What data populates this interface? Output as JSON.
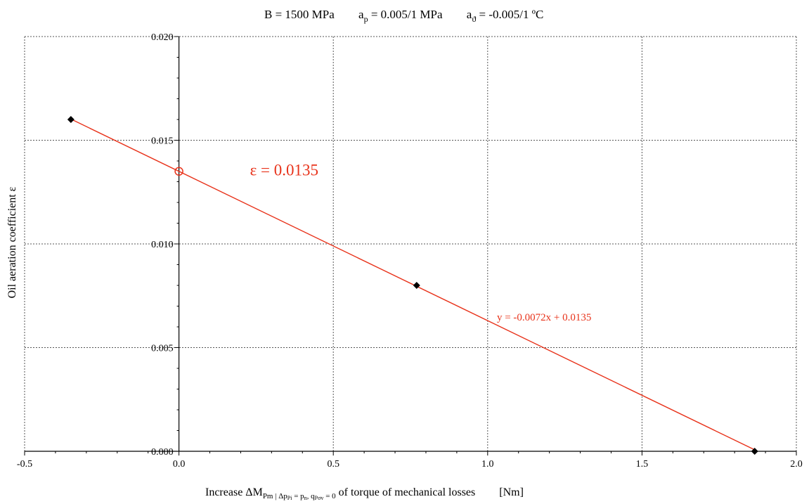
{
  "chart_data": {
    "type": "scatter",
    "title_parts": {
      "b": "B = 1500  MPa",
      "ap_main": "a",
      "ap_sub": "p",
      "ap_val": " = 0.005/1  MPa",
      "at_main": "a",
      "at_sub": "ϑ",
      "at_val": " = -0.005/1 ºC"
    },
    "ylabel": "Oil aeration coefficient ε",
    "xlabel_parts": {
      "pre": "Increase  ΔM",
      "sub1": "Pm",
      "sub2": " | Δp",
      "sub3": "Pi",
      "sub4": " = p",
      "sub5": "n",
      "sub6": ", q",
      "sub7": "Pσv",
      "sub8": " = 0",
      "post": " of torque of mechanical  losses",
      "unit": "[Nm]"
    },
    "xlim": [
      -0.5,
      2.0
    ],
    "ylim": [
      0.0,
      0.02
    ],
    "x_ticks": [
      "-0.5",
      "0.0",
      "0.5",
      "1.0",
      "1.5",
      "2.0"
    ],
    "y_ticks": [
      "0.000",
      "0.005",
      "0.010",
      "0.015",
      "0.020"
    ],
    "grid": true,
    "series": [
      {
        "points": [
          {
            "x": -0.35,
            "y": 0.016
          },
          {
            "x": 0.77,
            "y": 0.008
          },
          {
            "x": 1.865,
            "y": 0.0
          }
        ]
      }
    ],
    "trendline": {
      "slope": -0.0072,
      "intercept": 0.0135,
      "x_range": [
        -0.35,
        1.865
      ],
      "equation": "y = -0.0072x + 0.0135"
    },
    "intercept_marker": {
      "x": 0.0,
      "y": 0.0135
    },
    "intercept_label": "ε = 0.0135",
    "colors": {
      "line": "#e8321a",
      "marker": "#000000",
      "grid": "#555555"
    }
  }
}
